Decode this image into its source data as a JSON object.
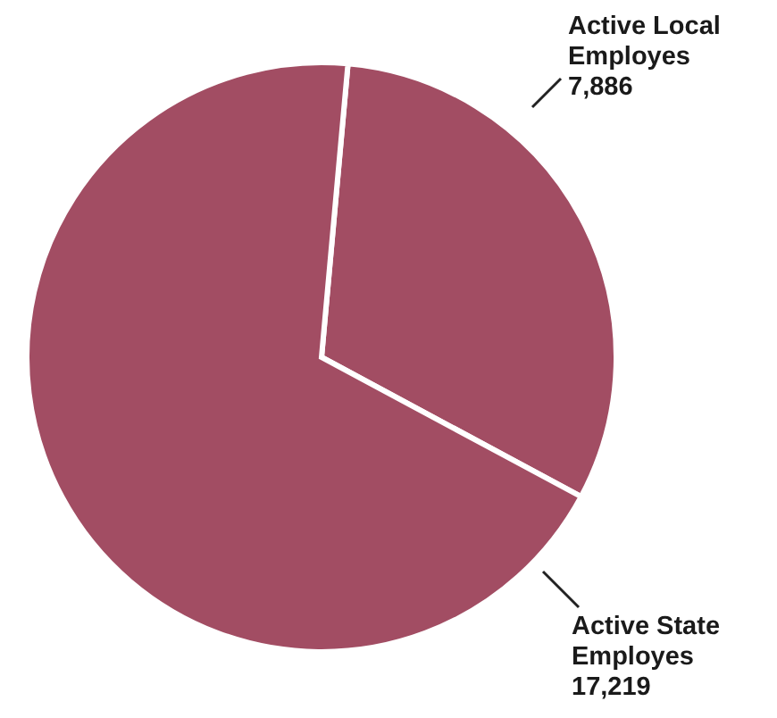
{
  "chart_data": {
    "type": "pie",
    "categories": [
      "Active Local Employes",
      "Active State Employes"
    ],
    "values": [
      7886,
      17219
    ],
    "value_labels": [
      "7,886",
      "17,219"
    ],
    "colors": [
      "#a24d63",
      "#a24d63"
    ]
  }
}
